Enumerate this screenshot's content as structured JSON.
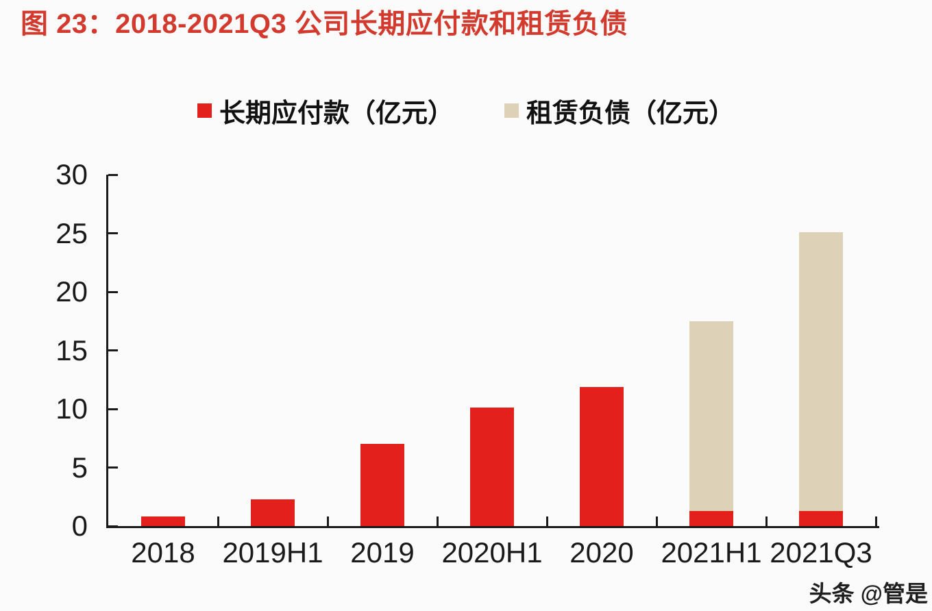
{
  "page": {
    "title": "图 23：2018-2021Q3 公司长期应付款和租赁负债",
    "title_color": "#d23a2e",
    "background_color": "#fbfbfb",
    "watermark": "头条 @管是"
  },
  "chart_data": {
    "type": "bar",
    "stacked": true,
    "title": "图 23：2018-2021Q3 公司长期应付款和租赁负债",
    "categories": [
      "2018",
      "2019H1",
      "2019",
      "2020H1",
      "2020",
      "2021H1",
      "2021Q3"
    ],
    "series": [
      {
        "name": "长期应付款（亿元）",
        "color": "#e4201c",
        "values": [
          0.8,
          2.3,
          7.0,
          10.1,
          11.9,
          1.3,
          1.3
        ]
      },
      {
        "name": "租赁负债（亿元）",
        "color": "#ddd1b8",
        "values": [
          0,
          0,
          0,
          0,
          0,
          16.2,
          23.8
        ]
      }
    ],
    "xlabel": "",
    "ylabel": "",
    "ylim": [
      0,
      30
    ],
    "yticks": [
      0,
      5,
      10,
      15,
      20,
      25,
      30
    ],
    "grid": false,
    "legend_position": "top",
    "axis_color": "#1a1a1a",
    "label_color": "#1a1a1a"
  }
}
